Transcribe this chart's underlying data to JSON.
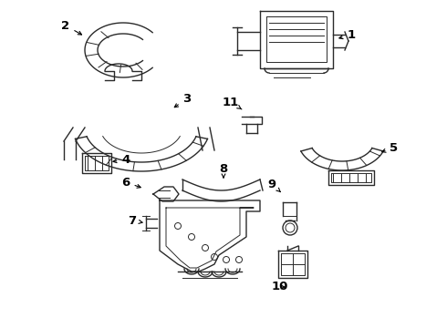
{
  "bg_color": "#ffffff",
  "line_color": "#2a2a2a",
  "label_color": "#000000",
  "label_fontsize": 9.5,
  "fig_width": 4.9,
  "fig_height": 3.6,
  "dpi": 100
}
